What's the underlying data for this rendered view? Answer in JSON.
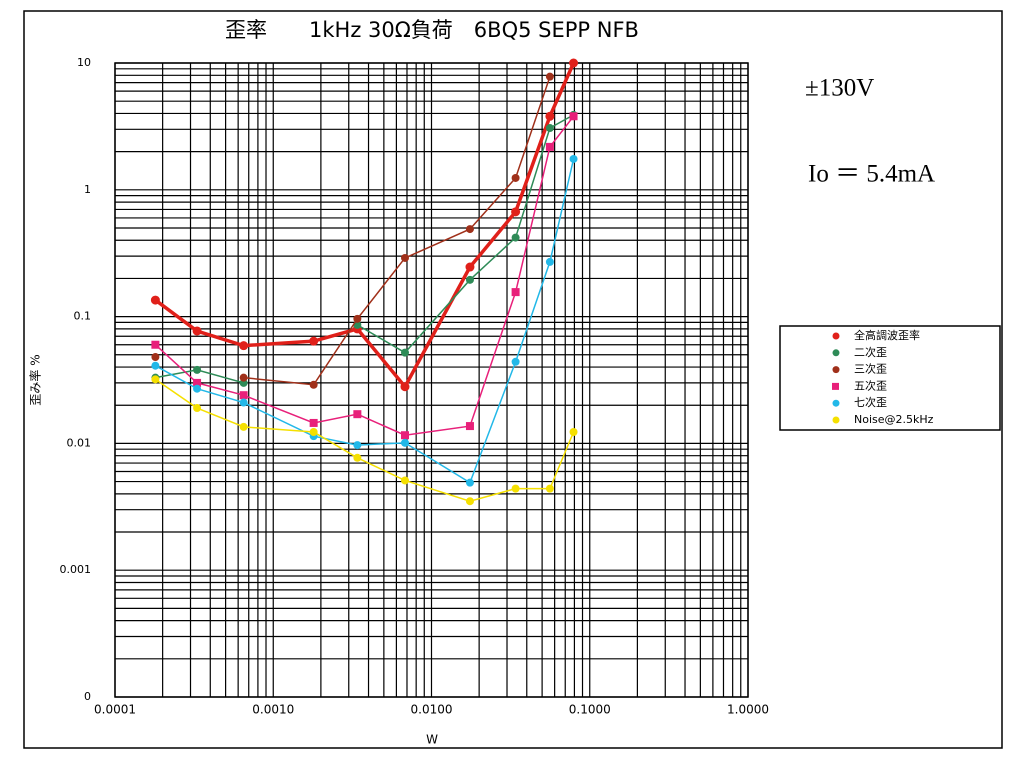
{
  "chart_data": {
    "type": "line",
    "title": "歪率　　1kHz 30Ω負荷　6BQ5 SEPP NFB",
    "x_label": "W",
    "y_label": "歪み率 %",
    "annotations": [
      "±130V",
      "Io ＝ 5.4mA"
    ],
    "log_x": true,
    "log_y": true,
    "grid": true,
    "legend": "right",
    "xlim": [
      0.0001,
      1
    ],
    "ylim": [
      0.0001,
      10
    ],
    "xticks": [
      {
        "value": 0.0001,
        "label": "0.0001"
      },
      {
        "value": 0.001,
        "label": "0.0010"
      },
      {
        "value": 0.01,
        "label": "0.0100"
      },
      {
        "value": 0.1,
        "label": "0.1000"
      },
      {
        "value": 1,
        "label": "1.0000"
      }
    ],
    "yticks": [
      {
        "value": 0.0001,
        "label": "0"
      },
      0.001,
      0.01,
      0.1,
      1,
      10
    ],
    "x": [
      0.00018,
      0.00033,
      0.00065,
      0.0018,
      0.0034,
      0.0068,
      0.0175,
      0.034,
      0.056,
      0.079
    ],
    "series": [
      {
        "name": "全高調波歪率",
        "color": "#e0201a",
        "marker": "circle",
        "width": 3.5,
        "values": [
          0.135,
          0.077,
          0.059,
          0.064,
          0.08,
          0.028,
          0.246,
          0.67,
          3.8,
          10
        ]
      },
      {
        "name": "二次歪",
        "color": "#2e8b57",
        "marker": "circle",
        "width": 1.5,
        "values": [
          0.033,
          0.038,
          0.03,
          null,
          0.086,
          0.052,
          0.195,
          0.42,
          3.07,
          3.9
        ]
      },
      {
        "name": "三次歪",
        "color": "#a0301a",
        "marker": "circle",
        "width": 1.5,
        "values": [
          0.048,
          null,
          0.033,
          0.029,
          0.096,
          0.29,
          0.49,
          1.24,
          7.8,
          null
        ]
      },
      {
        "name": "五次歪",
        "color": "#e8207a",
        "marker": "square",
        "width": 1.5,
        "values": [
          0.06,
          0.03,
          0.024,
          0.0145,
          0.017,
          0.0116,
          0.0137,
          0.156,
          2.18,
          3.8
        ]
      },
      {
        "name": "七次歪",
        "color": "#22b8e8",
        "marker": "circle",
        "width": 1.5,
        "values": [
          0.041,
          0.027,
          0.021,
          0.0114,
          0.0097,
          0.0101,
          0.0049,
          0.044,
          0.27,
          1.75
        ]
      },
      {
        "name": "Noise@2.5kHz",
        "color": "#f5e000",
        "marker": "circle",
        "width": 1.5,
        "values": [
          0.032,
          0.019,
          0.0135,
          0.0123,
          0.0077,
          0.0051,
          0.0035,
          0.0044,
          0.0044,
          0.0123
        ]
      }
    ]
  }
}
